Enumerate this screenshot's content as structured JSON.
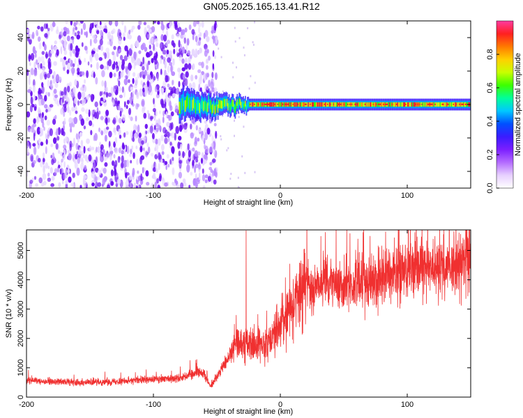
{
  "title": "GN05.2025.165.13.41.R12",
  "chart_data": [
    {
      "type": "heatmap",
      "xlabel": "Height of straight line (km)",
      "ylabel": "Frequency (Hz)",
      "xlim": [
        -200,
        150
      ],
      "ylim": [
        -50,
        50
      ],
      "xticks": [
        "-200",
        "-100",
        "0",
        "100"
      ],
      "yticks": [
        "-40",
        "-20",
        "0",
        "20",
        "40"
      ],
      "colorbar": {
        "label": "Normalized spectral amplitude",
        "range": [
          0,
          1
        ],
        "ticks": [
          "0.0",
          "0.2",
          "0.4",
          "0.6",
          "0.8"
        ],
        "colors": [
          "#ffffff",
          "#e7d0ff",
          "#b46bff",
          "#7b1fff",
          "#3a1cff",
          "#0050ff",
          "#00c8ff",
          "#00ff9a",
          "#3cff00",
          "#c8ff00",
          "#ffd000",
          "#ff7a00",
          "#ff2020",
          "#ff3aa0"
        ]
      },
      "features": {
        "noise_region_x": [
          -200,
          -50
        ],
        "signal_band_center_hz": 0,
        "signal_onset_km": -80
      },
      "grid": false
    },
    {
      "type": "line",
      "xlabel": "Height of straight line (km)",
      "ylabel": "SNR (10 * v/v)",
      "xlim": [
        -200,
        150
      ],
      "ylim": [
        0,
        5700
      ],
      "xticks": [
        "-200",
        "-100",
        "0",
        "100"
      ],
      "yticks": [
        "0",
        "1000",
        "2000",
        "3000",
        "4000",
        "5000"
      ],
      "series_color": "#f03030",
      "trend": {
        "x": [
          -200,
          -150,
          -100,
          -80,
          -65,
          -60,
          -55,
          -40,
          -35,
          -30,
          -20,
          -10,
          0,
          10,
          20,
          30,
          50,
          75,
          100,
          125,
          150
        ],
        "y": [
          550,
          500,
          600,
          650,
          850,
          800,
          350,
          1400,
          1800,
          1900,
          1700,
          1900,
          2500,
          3200,
          3800,
          3850,
          3800,
          4050,
          4350,
          4450,
          4650
        ]
      },
      "peak": {
        "x": -27,
        "y": 5680
      },
      "grid": false
    }
  ]
}
